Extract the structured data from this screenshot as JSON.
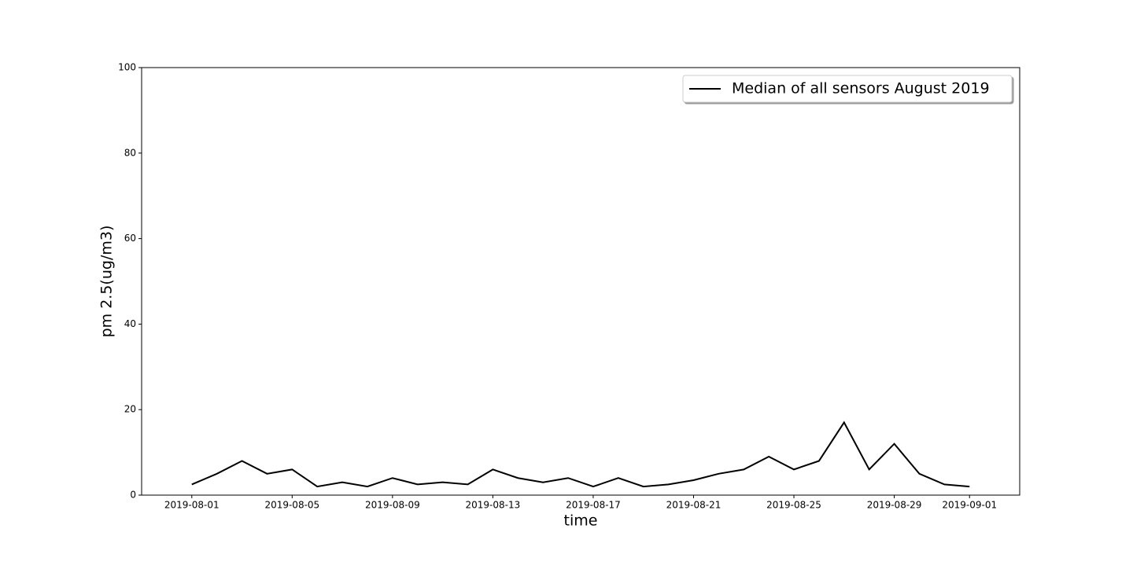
{
  "chart_data": {
    "type": "line",
    "x_label": "time",
    "y_label": "pm 2.5(ug/m3)",
    "x": [
      "2019-08-01",
      "2019-08-02",
      "2019-08-03",
      "2019-08-04",
      "2019-08-05",
      "2019-08-06",
      "2019-08-07",
      "2019-08-08",
      "2019-08-09",
      "2019-08-10",
      "2019-08-11",
      "2019-08-12",
      "2019-08-13",
      "2019-08-14",
      "2019-08-15",
      "2019-08-16",
      "2019-08-17",
      "2019-08-18",
      "2019-08-19",
      "2019-08-20",
      "2019-08-21",
      "2019-08-22",
      "2019-08-23",
      "2019-08-24",
      "2019-08-25",
      "2019-08-26",
      "2019-08-27",
      "2019-08-28",
      "2019-08-29",
      "2019-08-30",
      "2019-08-31",
      "2019-09-01"
    ],
    "series": [
      {
        "name": "Median of all sensors August 2019",
        "color": "#000000",
        "values": [
          2.5,
          5,
          8,
          5,
          6,
          2,
          3,
          2,
          4,
          2.5,
          3,
          2.5,
          6,
          4,
          3,
          4,
          2,
          4,
          2,
          2.5,
          3.5,
          5,
          6,
          9,
          6,
          8,
          17,
          6,
          12,
          5,
          2.5,
          2
        ]
      }
    ],
    "xlim": [
      "2019-07-30",
      "2019-09-03"
    ],
    "xticks": [
      "2019-08-01",
      "2019-08-05",
      "2019-08-09",
      "2019-08-13",
      "2019-08-17",
      "2019-08-21",
      "2019-08-25",
      "2019-08-29",
      "2019-09-01"
    ],
    "ylim": [
      0,
      100
    ],
    "yticks": [
      0,
      20,
      40,
      60,
      80,
      100
    ],
    "grid": false,
    "legend_position": "upper-right"
  }
}
